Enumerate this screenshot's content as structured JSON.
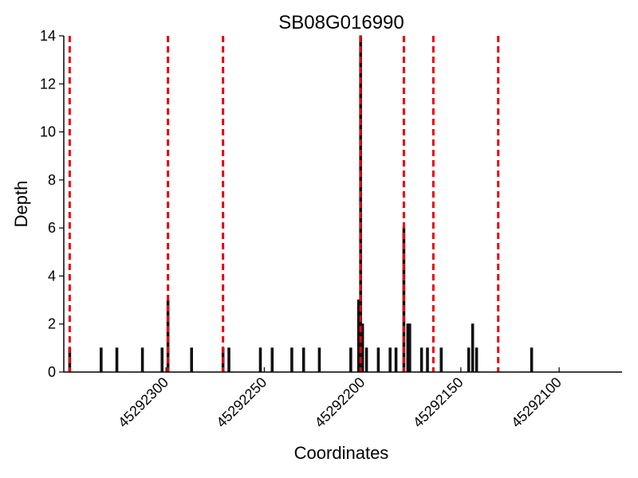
{
  "chart_data": {
    "type": "bar",
    "title": "SB08G016990",
    "xlabel": "Coordinates",
    "ylabel": "Depth",
    "x_reversed": true,
    "xlim": [
      45292352,
      45292068
    ],
    "ylim": [
      0,
      14
    ],
    "yticks": [
      0,
      2,
      4,
      6,
      8,
      10,
      12,
      14
    ],
    "xticks": [
      45292300,
      45292250,
      45292200,
      45292150,
      45292100
    ],
    "grid": false,
    "legend": "none",
    "colors": {
      "bar_fill": "#1a1a1a",
      "bar_edge": "#000000",
      "marker_line": "#e8000b"
    },
    "bars": [
      {
        "x": 45292349,
        "y": 1
      },
      {
        "x": 45292333,
        "y": 1
      },
      {
        "x": 45292325,
        "y": 1
      },
      {
        "x": 45292312,
        "y": 1
      },
      {
        "x": 45292302,
        "y": 1
      },
      {
        "x": 45292299,
        "y": 3
      },
      {
        "x": 45292287,
        "y": 1
      },
      {
        "x": 45292271,
        "y": 1
      },
      {
        "x": 45292268,
        "y": 1
      },
      {
        "x": 45292252,
        "y": 1
      },
      {
        "x": 45292246,
        "y": 1
      },
      {
        "x": 45292236,
        "y": 1
      },
      {
        "x": 45292230,
        "y": 1
      },
      {
        "x": 45292222,
        "y": 1
      },
      {
        "x": 45292206,
        "y": 1
      },
      {
        "x": 45292202,
        "y": 3
      },
      {
        "x": 45292201,
        "y": 14
      },
      {
        "x": 45292200,
        "y": 2
      },
      {
        "x": 45292198,
        "y": 1
      },
      {
        "x": 45292192,
        "y": 1
      },
      {
        "x": 45292186,
        "y": 1
      },
      {
        "x": 45292183,
        "y": 1
      },
      {
        "x": 45292179,
        "y": 6
      },
      {
        "x": 45292177,
        "y": 2
      },
      {
        "x": 45292176,
        "y": 2
      },
      {
        "x": 45292170,
        "y": 1
      },
      {
        "x": 45292167,
        "y": 1
      },
      {
        "x": 45292160,
        "y": 1
      },
      {
        "x": 45292146,
        "y": 1
      },
      {
        "x": 45292144,
        "y": 2
      },
      {
        "x": 45292142,
        "y": 1
      },
      {
        "x": 45292114,
        "y": 1
      }
    ],
    "marker_lines": [
      45292349,
      45292299,
      45292271,
      45292201,
      45292179,
      45292164,
      45292131
    ]
  }
}
